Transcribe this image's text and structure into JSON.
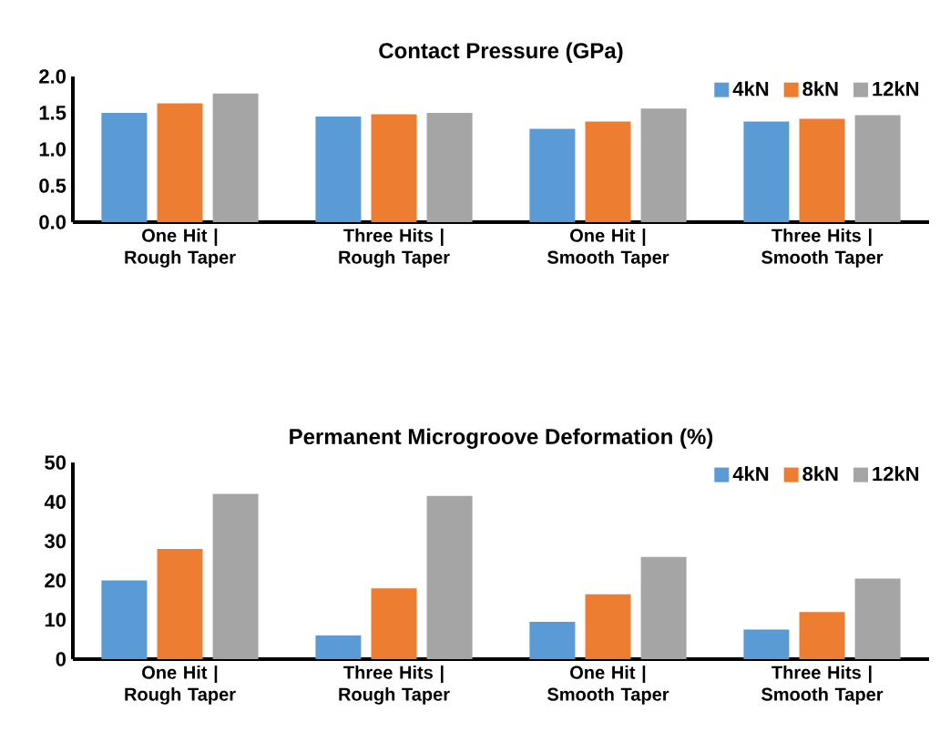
{
  "chart_data": [
    {
      "type": "bar",
      "title": "Contact Pressure (GPa)",
      "categories": [
        "One Hit | Rough Taper",
        "Three Hits | Rough Taper",
        "One Hit | Smooth Taper",
        "Three Hits | Smooth Taper"
      ],
      "series": [
        {
          "name": "4kN",
          "color": "#5b9bd5",
          "values": [
            1.5,
            1.45,
            1.28,
            1.38
          ]
        },
        {
          "name": "8kN",
          "color": "#ed7d31",
          "values": [
            1.63,
            1.48,
            1.38,
            1.42
          ]
        },
        {
          "name": "12kN",
          "color": "#a5a5a5",
          "values": [
            1.77,
            1.5,
            1.56,
            1.47
          ]
        }
      ],
      "ylim": [
        0,
        2
      ],
      "yticks": [
        {
          "value": 0,
          "label": "0.0"
        },
        {
          "value": 0.5,
          "label": "0.5"
        },
        {
          "value": 1,
          "label": "1.0"
        },
        {
          "value": 1.5,
          "label": "1.5"
        },
        {
          "value": 2,
          "label": "2.0"
        }
      ],
      "grid": false,
      "legend": "top right"
    },
    {
      "type": "bar",
      "title": "Permanent Microgroove Deformation (%)",
      "categories": [
        "One Hit | Rough Taper",
        "Three Hits | Rough Taper",
        "One Hit | Smooth Taper",
        "Three Hits | Smooth Taper"
      ],
      "series": [
        {
          "name": "4kN",
          "color": "#5b9bd5",
          "values": [
            20,
            6,
            9.5,
            7.5
          ]
        },
        {
          "name": "8kN",
          "color": "#ed7d31",
          "values": [
            28,
            18,
            16.5,
            12
          ]
        },
        {
          "name": "12kN",
          "color": "#a5a5a5",
          "values": [
            42,
            41.5,
            26,
            20.5
          ]
        }
      ],
      "ylim": [
        0,
        50
      ],
      "yticks": [
        0,
        10,
        20,
        30,
        40,
        50
      ],
      "grid": false,
      "legend": "top right"
    }
  ]
}
